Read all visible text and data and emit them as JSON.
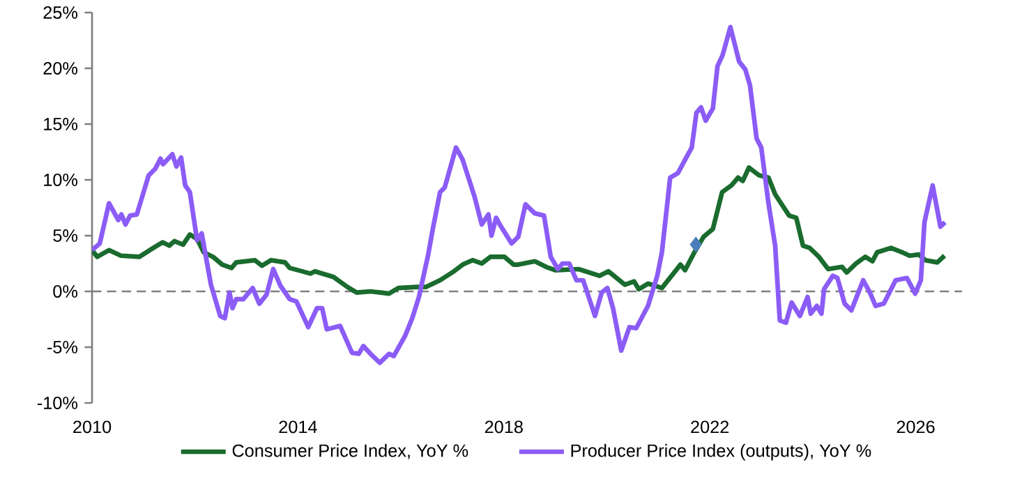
{
  "chart_data": {
    "type": "line",
    "xlim": [
      2010,
      2026.9
    ],
    "xticks": [
      2010,
      2014,
      2018,
      2022,
      2026
    ],
    "ylim": [
      -10,
      25
    ],
    "yticks": [
      {
        "value": -10,
        "label": "-10%"
      },
      {
        "value": -5,
        "label": "-5%"
      },
      {
        "value": 0,
        "label": "0%"
      },
      {
        "value": 5,
        "label": "5%"
      },
      {
        "value": 10,
        "label": "10%"
      },
      {
        "value": 15,
        "label": "15%"
      },
      {
        "value": 20,
        "label": "20%"
      },
      {
        "value": 25,
        "label": "25%"
      }
    ],
    "grid": false,
    "legend": "bottom",
    "line_style": "solid",
    "ref_lines": [
      {
        "axis": "y",
        "value": 0,
        "color": "#7f7f7f",
        "line_style": "dashed"
      }
    ],
    "series": [
      {
        "name": "Consumer Price Index, YoY %",
        "color": "#1a6b2e",
        "marker": "none",
        "x": [
          2010.0,
          2010.1,
          2010.33,
          2010.56,
          2010.92,
          2011.19,
          2011.37,
          2011.5,
          2011.6,
          2011.77,
          2011.9,
          2012.04,
          2012.17,
          2012.35,
          2012.53,
          2012.71,
          2012.8,
          2013.16,
          2013.3,
          2013.48,
          2013.75,
          2013.84,
          2014.24,
          2014.33,
          2014.69,
          2014.96,
          2015.14,
          2015.41,
          2015.77,
          2015.95,
          2016.31,
          2016.49,
          2016.76,
          2017.03,
          2017.2,
          2017.39,
          2017.57,
          2017.74,
          2018.01,
          2018.19,
          2018.28,
          2018.6,
          2018.82,
          2019.0,
          2019.45,
          2019.86,
          2020.03,
          2020.35,
          2020.53,
          2020.62,
          2020.8,
          2021.07,
          2021.43,
          2021.52,
          2021.7,
          2021.88,
          2022.06,
          2022.24,
          2022.42,
          2022.55,
          2022.64,
          2022.76,
          2022.96,
          2023.14,
          2023.27,
          2023.54,
          2023.68,
          2023.81,
          2023.94,
          2024.12,
          2024.3,
          2024.57,
          2024.66,
          2024.84,
          2025.02,
          2025.16,
          2025.25,
          2025.52,
          2025.74,
          2025.88,
          2026.06,
          2026.19,
          2026.42,
          2026.56
        ],
        "values": [
          3.7,
          3.1,
          3.7,
          3.2,
          3.1,
          3.9,
          4.4,
          4.1,
          4.5,
          4.2,
          5.1,
          4.7,
          3.5,
          3.1,
          2.4,
          2.1,
          2.6,
          2.8,
          2.3,
          2.8,
          2.6,
          2.1,
          1.6,
          1.8,
          1.3,
          0.4,
          -0.1,
          0,
          -0.2,
          0.3,
          0.4,
          0.4,
          1.0,
          1.8,
          2.4,
          2.8,
          2.5,
          3.1,
          3.1,
          2.4,
          2.4,
          2.7,
          2.2,
          1.9,
          2.0,
          1.4,
          1.8,
          0.6,
          0.9,
          0.2,
          0.7,
          0.3,
          2.4,
          1.9,
          3.5,
          4.9,
          5.6,
          8.9,
          9.5,
          10.2,
          9.9,
          11.1,
          10.4,
          10.2,
          8.7,
          6.8,
          6.6,
          4.1,
          3.9,
          3.1,
          2.0,
          2.2,
          1.7,
          2.5,
          3.1,
          2.7,
          3.5,
          3.9,
          3.5,
          3.2,
          3.3,
          2.8,
          2.6,
          3.2
        ]
      },
      {
        "name": "Producer Price Index (outputs), YoY %",
        "color": "#8b5cf6",
        "marker": "none",
        "x": [
          2010.0,
          2010.15,
          2010.33,
          2010.51,
          2010.57,
          2010.65,
          2010.74,
          2010.87,
          2011.1,
          2011.23,
          2011.33,
          2011.38,
          2011.56,
          2011.64,
          2011.73,
          2011.81,
          2011.9,
          2012.04,
          2012.13,
          2012.31,
          2012.49,
          2012.58,
          2012.67,
          2012.73,
          2012.8,
          2012.94,
          2013.12,
          2013.25,
          2013.39,
          2013.52,
          2013.66,
          2013.84,
          2013.97,
          2014.2,
          2014.37,
          2014.47,
          2014.56,
          2014.82,
          2015.05,
          2015.18,
          2015.27,
          2015.41,
          2015.59,
          2015.77,
          2015.86,
          2016.08,
          2016.22,
          2016.35,
          2016.53,
          2016.62,
          2016.76,
          2016.85,
          2017.07,
          2017.2,
          2017.43,
          2017.57,
          2017.7,
          2017.76,
          2017.85,
          2017.92,
          2018.15,
          2018.28,
          2018.42,
          2018.6,
          2018.78,
          2018.91,
          2019.05,
          2019.14,
          2019.27,
          2019.41,
          2019.54,
          2019.77,
          2019.9,
          2020.01,
          2020.12,
          2020.28,
          2020.44,
          2020.57,
          2020.8,
          2020.98,
          2021.07,
          2021.23,
          2021.38,
          2021.52,
          2021.65,
          2021.74,
          2021.83,
          2021.92,
          2022.06,
          2022.15,
          2022.25,
          2022.4,
          2022.57,
          2022.69,
          2022.78,
          2022.91,
          2023.0,
          2023.14,
          2023.27,
          2023.36,
          2023.48,
          2023.59,
          2023.75,
          2023.9,
          2023.96,
          2024.08,
          2024.17,
          2024.22,
          2024.39,
          2024.48,
          2024.62,
          2024.75,
          2024.98,
          2025.11,
          2025.22,
          2025.38,
          2025.61,
          2025.83,
          2025.99,
          2026.1,
          2026.17,
          2026.33,
          2026.48,
          2026.57
        ],
        "values": [
          3.7,
          4.3,
          7.9,
          6.4,
          6.9,
          6.0,
          6.8,
          6.9,
          10.4,
          11.0,
          11.9,
          11.4,
          12.3,
          11.2,
          12.0,
          9.5,
          8.9,
          4.6,
          5.2,
          0.6,
          -2.2,
          -2.4,
          -0.1,
          -1.5,
          -0.7,
          -0.7,
          0.3,
          -1.1,
          -0.3,
          2.0,
          0.5,
          -0.7,
          -0.9,
          -3.2,
          -1.5,
          -1.5,
          -3.4,
          -3.1,
          -5.5,
          -5.6,
          -4.9,
          -5.6,
          -6.4,
          -5.6,
          -5.8,
          -4.0,
          -2.4,
          -0.5,
          3.3,
          5.6,
          8.9,
          9.3,
          12.9,
          11.8,
          8.5,
          6.0,
          6.9,
          5.0,
          6.6,
          6.0,
          4.3,
          4.9,
          7.8,
          7.0,
          6.8,
          3.1,
          2.0,
          2.5,
          2.5,
          1.0,
          1.0,
          -2.2,
          -0.1,
          0.3,
          -1.5,
          -5.3,
          -3.2,
          -3.3,
          -1.3,
          1.4,
          3.5,
          10.2,
          10.6,
          11.8,
          12.9,
          16.0,
          16.5,
          15.3,
          16.4,
          20.2,
          21.2,
          23.7,
          20.6,
          19.9,
          18.5,
          13.7,
          12.9,
          7.9,
          4.1,
          -2.6,
          -2.8,
          -1.0,
          -2.2,
          -0.5,
          -2.0,
          -1.3,
          -2.0,
          0.2,
          1.4,
          1.2,
          -1.1,
          -1.7,
          1.0,
          -0.1,
          -1.3,
          -1.1,
          1.0,
          1.2,
          -0.2,
          1.0,
          6.2,
          9.5,
          5.8,
          6.2
        ]
      },
      {
        "type": "scatter",
        "color": "#4a7ebb",
        "marker": "diamond",
        "x": [
          2021.73
        ],
        "values": [
          4.2
        ]
      }
    ]
  }
}
